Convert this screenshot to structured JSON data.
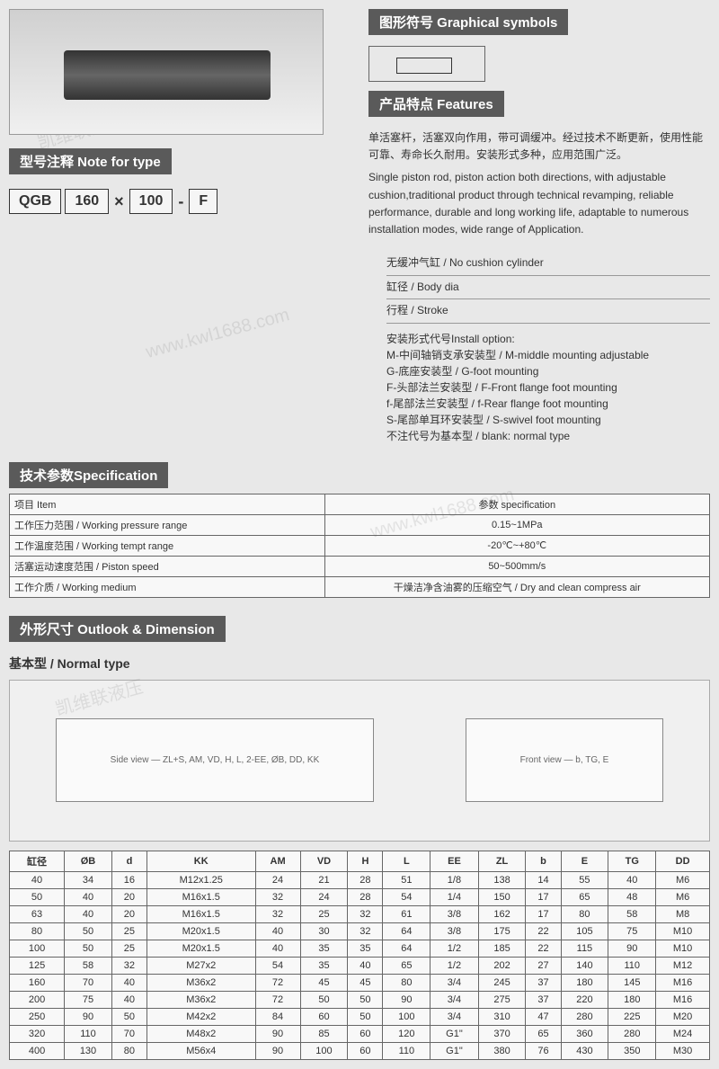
{
  "headers": {
    "graphical": "图形符号 Graphical symbols",
    "features": "产品特点 Features",
    "noteType": "型号注释 Note for type",
    "spec": "技术参数Specification",
    "outlook": "外形尺寸 Outlook & Dimension"
  },
  "features": {
    "cn": "单活塞杆，活塞双向作用，带可调缓冲。经过技术不断更新，使用性能可靠、寿命长久耐用。安装形式多种，应用范围广泛。",
    "en": "Single piston rod, piston action both directions, with adjustable cushion,traditional product through technical revamping, reliable performance, durable and long working life, adaptable to numerous installation modes, wide range of Application."
  },
  "typeCode": {
    "p1": "QGB",
    "p2": "160",
    "p3": "100",
    "p4": "F",
    "sepX": "×",
    "sepDash": "-"
  },
  "connectors": {
    "c1": "无缓冲气缸 / No cushion cylinder",
    "c2": "缸径 / Body dia",
    "c3": "行程 / Stroke",
    "installTitle": "安装形式代号Install option:",
    "opts": [
      "M-中间轴销支承安装型 / M-middle mounting adjustable",
      "G-底座安装型 / G-foot mounting",
      "F-头部法兰安装型 / F-Front flange foot mounting",
      "f-尾部法兰安装型 / f-Rear flange foot mounting",
      "S-尾部单耳环安装型 / S-swivel foot mounting",
      "不注代号为基本型 / blank: normal type"
    ]
  },
  "specTable": {
    "colItem": "项目 Item",
    "colSpec": "参数 specification",
    "rows": [
      {
        "item": "工作压力范围 / Working pressure range",
        "val": "0.15~1MPa"
      },
      {
        "item": "工作温度范围 / Working tempt range",
        "val": "-20℃~+80℃"
      },
      {
        "item": "活塞运动速度范围 / Piston speed",
        "val": "50~500mm/s"
      },
      {
        "item": "工作介质 / Working medium",
        "val": "干燥洁净含油雾的压缩空气 / Dry and clean compress air"
      }
    ]
  },
  "normalType": "基本型 / Normal type",
  "drawingLabels": {
    "side": "Side view — ZL+S, AM, VD, H, L, 2-EE, ØB, DD, KK",
    "front": "Front view — b, TG, E"
  },
  "dimTable": {
    "headers": [
      "缸径",
      "ØB",
      "d",
      "KK",
      "AM",
      "VD",
      "H",
      "L",
      "EE",
      "ZL",
      "b",
      "E",
      "TG",
      "DD"
    ],
    "rows": [
      [
        "40",
        "34",
        "16",
        "M12x1.25",
        "24",
        "21",
        "28",
        "51",
        "1/8",
        "138",
        "14",
        "55",
        "40",
        "M6"
      ],
      [
        "50",
        "40",
        "20",
        "M16x1.5",
        "32",
        "24",
        "28",
        "54",
        "1/4",
        "150",
        "17",
        "65",
        "48",
        "M6"
      ],
      [
        "63",
        "40",
        "20",
        "M16x1.5",
        "32",
        "25",
        "32",
        "61",
        "3/8",
        "162",
        "17",
        "80",
        "58",
        "M8"
      ],
      [
        "80",
        "50",
        "25",
        "M20x1.5",
        "40",
        "30",
        "32",
        "64",
        "3/8",
        "175",
        "22",
        "105",
        "75",
        "M10"
      ],
      [
        "100",
        "50",
        "25",
        "M20x1.5",
        "40",
        "35",
        "35",
        "64",
        "1/2",
        "185",
        "22",
        "115",
        "90",
        "M10"
      ],
      [
        "125",
        "58",
        "32",
        "M27x2",
        "54",
        "35",
        "40",
        "65",
        "1/2",
        "202",
        "27",
        "140",
        "110",
        "M12"
      ],
      [
        "160",
        "70",
        "40",
        "M36x2",
        "72",
        "45",
        "45",
        "80",
        "3/4",
        "245",
        "37",
        "180",
        "145",
        "M16"
      ],
      [
        "200",
        "75",
        "40",
        "M36x2",
        "72",
        "50",
        "50",
        "90",
        "3/4",
        "275",
        "37",
        "220",
        "180",
        "M16"
      ],
      [
        "250",
        "90",
        "50",
        "M42x2",
        "84",
        "60",
        "50",
        "100",
        "3/4",
        "310",
        "47",
        "280",
        "225",
        "M20"
      ],
      [
        "320",
        "110",
        "70",
        "M48x2",
        "90",
        "85",
        "60",
        "120",
        "G1\"",
        "370",
        "65",
        "360",
        "280",
        "M24"
      ],
      [
        "400",
        "130",
        "80",
        "M56x4",
        "90",
        "100",
        "60",
        "110",
        "G1\"",
        "380",
        "76",
        "430",
        "350",
        "M30"
      ]
    ]
  },
  "watermark": "www.kwl1688.com",
  "watermarkCn": "凯维联液压",
  "colors": {
    "headerBg": "#5a5a5a",
    "bodyBg": "#e8e8e8",
    "border": "#666666"
  }
}
